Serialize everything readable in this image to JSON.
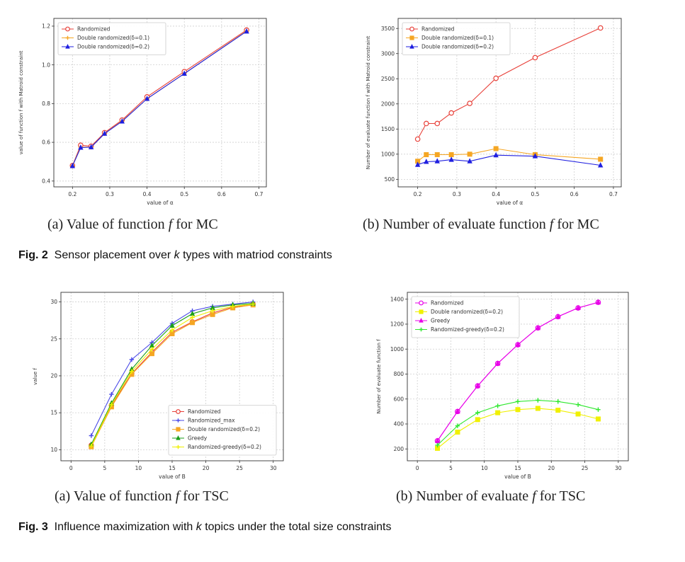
{
  "chart_data": [
    {
      "id": "fig2a",
      "type": "line",
      "xlabel": "value of α",
      "ylabel": "value of function f with Matroid constraint",
      "xlim": [
        0.15,
        0.72
      ],
      "ylim": [
        0.37,
        1.24
      ],
      "xticks": [
        0.2,
        0.3,
        0.4,
        0.5,
        0.6,
        0.7
      ],
      "yticks": [
        0.4,
        0.6,
        0.8,
        1.0,
        1.2
      ],
      "xtick_labels": [
        "0.2",
        "0.3",
        "0.4",
        "0.5",
        "0.6",
        "0.7"
      ],
      "ytick_labels": [
        "0.4",
        "0.6",
        "0.8",
        "1.0",
        "1.2"
      ],
      "grid": true,
      "legend_loc": "top-left",
      "x": [
        0.2,
        0.222,
        0.25,
        0.286,
        0.333,
        0.4,
        0.5,
        0.667
      ],
      "series": [
        {
          "name": "Randomized",
          "color": "#e8413a",
          "marker": "circle-open",
          "values": [
            0.48,
            0.585,
            0.58,
            0.65,
            0.715,
            0.835,
            0.965,
            1.18
          ]
        },
        {
          "name": "Double randomized(δ=0.1)",
          "color": "#f5a623",
          "marker": "plus",
          "values": [
            0.48,
            0.575,
            0.575,
            0.645,
            0.71,
            0.825,
            0.955,
            1.175
          ]
        },
        {
          "name": "Double randomized(δ=0.2)",
          "color": "#1f1fe0",
          "marker": "triangle",
          "values": [
            0.478,
            0.573,
            0.575,
            0.645,
            0.708,
            0.825,
            0.955,
            1.173
          ]
        }
      ]
    },
    {
      "id": "fig2b",
      "type": "line",
      "xlabel": "value of α",
      "ylabel": "Number of evaluate function f with Matroid constraint",
      "xlim": [
        0.15,
        0.72
      ],
      "ylim": [
        350,
        3700
      ],
      "xticks": [
        0.2,
        0.3,
        0.4,
        0.5,
        0.6,
        0.7
      ],
      "yticks": [
        500,
        1000,
        1500,
        2000,
        2500,
        3000,
        3500
      ],
      "xtick_labels": [
        "0.2",
        "0.3",
        "0.4",
        "0.5",
        "0.6",
        "0.7"
      ],
      "ytick_labels": [
        "500",
        "1000",
        "1500",
        "2000",
        "2500",
        "3000",
        "3500"
      ],
      "grid": true,
      "legend_loc": "top-left",
      "x": [
        0.2,
        0.222,
        0.25,
        0.286,
        0.333,
        0.4,
        0.5,
        0.667
      ],
      "series": [
        {
          "name": "Randomized",
          "color": "#e8413a",
          "marker": "circle-open",
          "values": [
            1300,
            1610,
            1610,
            1820,
            2010,
            2510,
            2920,
            3510
          ]
        },
        {
          "name": "Double randomized(δ=0.1)",
          "color": "#f5a623",
          "marker": "square",
          "values": [
            860,
            990,
            990,
            990,
            1000,
            1110,
            990,
            900
          ]
        },
        {
          "name": "Double randomized(δ=0.2)",
          "color": "#1f1fe0",
          "marker": "triangle",
          "values": [
            790,
            850,
            860,
            890,
            860,
            980,
            960,
            780
          ]
        }
      ]
    },
    {
      "id": "fig3a",
      "type": "line",
      "xlabel": "value of B",
      "ylabel": "value f",
      "xlim": [
        -1.5,
        31.5
      ],
      "ylim": [
        8.5,
        31.3
      ],
      "xticks": [
        0,
        5,
        10,
        15,
        20,
        25,
        30
      ],
      "yticks": [
        10,
        15,
        20,
        25,
        30
      ],
      "xtick_labels": [
        "0",
        "5",
        "10",
        "15",
        "20",
        "25",
        "30"
      ],
      "ytick_labels": [
        "10",
        "15",
        "20",
        "25",
        "30"
      ],
      "grid": true,
      "legend_loc": "lower-right",
      "x": [
        3,
        6,
        9,
        12,
        15,
        18,
        21,
        24,
        27
      ],
      "series": [
        {
          "name": "Randomized",
          "color": "#e8413a",
          "marker": "circle-open",
          "values": [
            10.6,
            16.0,
            20.3,
            23.2,
            25.9,
            27.3,
            28.5,
            29.3,
            29.7
          ]
        },
        {
          "name": "Randomized_max",
          "color": "#4a4ae8",
          "marker": "plus",
          "values": [
            11.9,
            17.5,
            22.2,
            24.5,
            27.1,
            28.8,
            29.4,
            29.7,
            30.0
          ]
        },
        {
          "name": "Double randomized(δ=0.2)",
          "color": "#f5a623",
          "marker": "square",
          "values": [
            10.4,
            15.8,
            20.2,
            23.0,
            25.7,
            27.2,
            28.3,
            29.2,
            29.6
          ]
        },
        {
          "name": "Greedy",
          "color": "#1a9e1a",
          "marker": "triangle",
          "values": [
            10.7,
            16.3,
            20.9,
            24.1,
            26.8,
            28.4,
            29.2,
            29.6,
            29.8
          ]
        },
        {
          "name": "Randomized-greedy(δ=0.2)",
          "color": "#f0f000",
          "marker": "plus",
          "values": [
            10.5,
            16.1,
            20.6,
            23.6,
            26.2,
            27.9,
            28.8,
            29.4,
            29.7
          ]
        }
      ]
    },
    {
      "id": "fig3b",
      "type": "line",
      "xlabel": "value of B",
      "ylabel": "Number of evaluate function f",
      "xlim": [
        -1.5,
        31.5
      ],
      "ylim": [
        105,
        1455
      ],
      "xticks": [
        0,
        5,
        10,
        15,
        20,
        25,
        30
      ],
      "yticks": [
        200,
        400,
        600,
        800,
        1000,
        1200,
        1400
      ],
      "xtick_labels": [
        "0",
        "5",
        "10",
        "15",
        "20",
        "25",
        "30"
      ],
      "ytick_labels": [
        "200",
        "400",
        "600",
        "800",
        "1000",
        "1200",
        "1400"
      ],
      "grid": true,
      "legend_loc": "top-left",
      "x": [
        3,
        6,
        9,
        12,
        15,
        18,
        21,
        24,
        27
      ],
      "series": [
        {
          "name": "Randomized",
          "color": "#e800e8",
          "marker": "circle-open",
          "values": [
            265,
            500,
            705,
            885,
            1035,
            1170,
            1260,
            1330,
            1375
          ]
        },
        {
          "name": "Double randomized(δ=0.2)",
          "color": "#f0f000",
          "marker": "square",
          "values": [
            205,
            335,
            435,
            490,
            515,
            525,
            510,
            480,
            440
          ]
        },
        {
          "name": "Greedy",
          "color": "#e800e8",
          "marker": "triangle",
          "values": [
            265,
            500,
            705,
            885,
            1035,
            1170,
            1260,
            1330,
            1375
          ]
        },
        {
          "name": "Randomized-greedy(δ=0.2)",
          "color": "#2ee82e",
          "marker": "plus",
          "values": [
            230,
            385,
            490,
            545,
            580,
            590,
            580,
            555,
            515
          ]
        }
      ]
    }
  ],
  "captions": {
    "fig2a": {
      "prefix": "(a) Value of function ",
      "var": "f",
      "suffix": " for MC"
    },
    "fig2b": {
      "prefix": "(b) Number of evaluate function ",
      "var": "f",
      "suffix": " for MC"
    },
    "fig2": {
      "label": "Fig. 2",
      "prefix": "Sensor placement over ",
      "var": "k",
      "suffix": " types with matriod constraints"
    },
    "fig3a": {
      "prefix": "(a) Value of function ",
      "var": "f",
      "suffix": " for TSC"
    },
    "fig3b": {
      "prefix": "(b) Number of evaluate ",
      "var": "f",
      "suffix": " for TSC"
    },
    "fig3": {
      "label": "Fig. 3",
      "prefix": "Influence maximization with ",
      "var": "k",
      "suffix": " topics under the total size constraints"
    }
  }
}
